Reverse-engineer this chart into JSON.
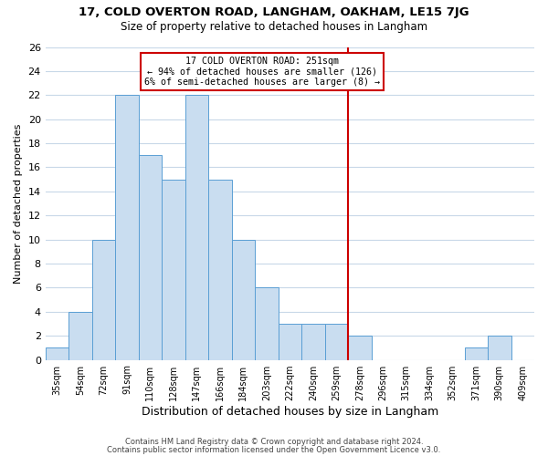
{
  "title": "17, COLD OVERTON ROAD, LANGHAM, OAKHAM, LE15 7JG",
  "subtitle": "Size of property relative to detached houses in Langham",
  "xlabel": "Distribution of detached houses by size in Langham",
  "ylabel": "Number of detached properties",
  "bin_labels": [
    "35sqm",
    "54sqm",
    "72sqm",
    "91sqm",
    "110sqm",
    "128sqm",
    "147sqm",
    "166sqm",
    "184sqm",
    "203sqm",
    "222sqm",
    "240sqm",
    "259sqm",
    "278sqm",
    "296sqm",
    "315sqm",
    "334sqm",
    "352sqm",
    "371sqm",
    "390sqm",
    "409sqm"
  ],
  "bar_heights": [
    1,
    4,
    10,
    22,
    17,
    15,
    22,
    15,
    10,
    6,
    3,
    3,
    3,
    2,
    0,
    0,
    0,
    0,
    1,
    2,
    0
  ],
  "bar_color": "#c9ddf0",
  "bar_edge_color": "#5a9fd4",
  "grid_color": "#c8d8e8",
  "vline_color": "#cc0000",
  "annotation_title": "17 COLD OVERTON ROAD: 251sqm",
  "annotation_line1": "← 94% of detached houses are smaller (126)",
  "annotation_line2": "6% of semi-detached houses are larger (8) →",
  "annotation_box_edge": "#cc0000",
  "ylim": [
    0,
    26
  ],
  "yticks": [
    0,
    2,
    4,
    6,
    8,
    10,
    12,
    14,
    16,
    18,
    20,
    22,
    24,
    26
  ],
  "footer1": "Contains HM Land Registry data © Crown copyright and database right 2024.",
  "footer2": "Contains public sector information licensed under the Open Government Licence v3.0."
}
